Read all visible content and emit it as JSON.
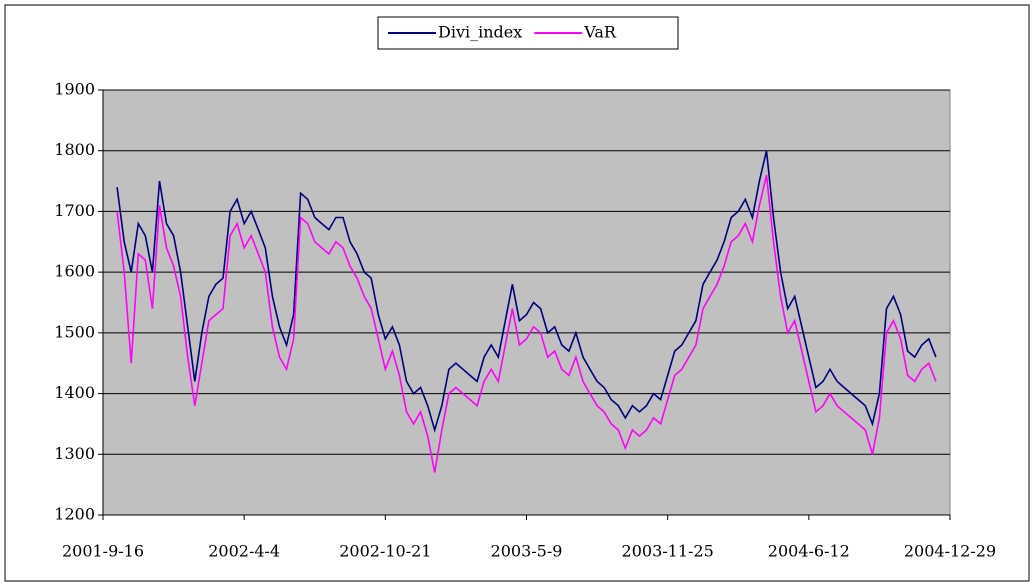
{
  "chart_data": {
    "type": "line",
    "categories": [
      "2001-9-16",
      null,
      null,
      null,
      null,
      null,
      null,
      null,
      null,
      null,
      null,
      null,
      null,
      null,
      null,
      null,
      null,
      null,
      null,
      null,
      "2002-4-4",
      null,
      null,
      null,
      null,
      null,
      null,
      null,
      null,
      null,
      null,
      null,
      null,
      null,
      null,
      null,
      null,
      null,
      null,
      null,
      "2002-10-21",
      null,
      null,
      null,
      null,
      null,
      null,
      null,
      null,
      null,
      null,
      null,
      null,
      null,
      null,
      null,
      null,
      null,
      null,
      null,
      "2003-5-9",
      null,
      null,
      null,
      null,
      null,
      null,
      null,
      null,
      null,
      null,
      null,
      null,
      null,
      null,
      null,
      null,
      null,
      null,
      null,
      "2003-11-25",
      null,
      null,
      null,
      null,
      null,
      null,
      null,
      null,
      null,
      null,
      null,
      null,
      null,
      null,
      null,
      null,
      null,
      null,
      null,
      "2004-6-12",
      null,
      null,
      null,
      null,
      null,
      null,
      null,
      null,
      null,
      null,
      null,
      null,
      null,
      null,
      null,
      null,
      null,
      null,
      null,
      "2004-12-29"
    ],
    "series": [
      {
        "name": "Divi_index",
        "color": "#000080",
        "values": [
          null,
          null,
          1740,
          1650,
          1600,
          1680,
          1660,
          1600,
          1750,
          1680,
          1660,
          1600,
          1510,
          1420,
          1500,
          1560,
          1580,
          1590,
          1700,
          1720,
          1680,
          1700,
          1670,
          1640,
          1560,
          1510,
          1480,
          1530,
          1730,
          1720,
          1690,
          1680,
          1670,
          1690,
          1690,
          1650,
          1630,
          1600,
          1590,
          1530,
          1490,
          1510,
          1480,
          1420,
          1400,
          1410,
          1380,
          1340,
          1380,
          1440,
          1450,
          1440,
          1430,
          1420,
          1460,
          1480,
          1460,
          1520,
          1580,
          1520,
          1530,
          1550,
          1540,
          1500,
          1510,
          1480,
          1470,
          1500,
          1460,
          1440,
          1420,
          1410,
          1390,
          1380,
          1360,
          1380,
          1370,
          1380,
          1400,
          1390,
          1430,
          1470,
          1480,
          1500,
          1520,
          1580,
          1600,
          1620,
          1650,
          1690,
          1700,
          1720,
          1690,
          1750,
          1800,
          1690,
          1600,
          1540,
          1560,
          1510,
          1460,
          1410,
          1420,
          1440,
          1420,
          1410,
          1400,
          1390,
          1380,
          1350,
          1400,
          1540,
          1560,
          1530,
          1470,
          1460,
          1480,
          1490,
          1460,
          null,
          null
        ]
      },
      {
        "name": "VaR",
        "color": "#ff00ff",
        "values": [
          null,
          null,
          1700,
          1600,
          1450,
          1630,
          1620,
          1540,
          1710,
          1640,
          1610,
          1560,
          1460,
          1380,
          1450,
          1520,
          1530,
          1540,
          1660,
          1680,
          1640,
          1660,
          1630,
          1600,
          1510,
          1460,
          1440,
          1490,
          1690,
          1680,
          1650,
          1640,
          1630,
          1650,
          1640,
          1610,
          1590,
          1560,
          1540,
          1490,
          1440,
          1470,
          1430,
          1370,
          1350,
          1370,
          1330,
          1270,
          1340,
          1400,
          1410,
          1400,
          1390,
          1380,
          1420,
          1440,
          1420,
          1480,
          1540,
          1480,
          1490,
          1510,
          1500,
          1460,
          1470,
          1440,
          1430,
          1460,
          1420,
          1400,
          1380,
          1370,
          1350,
          1340,
          1310,
          1340,
          1330,
          1340,
          1360,
          1350,
          1390,
          1430,
          1440,
          1460,
          1480,
          1540,
          1560,
          1580,
          1610,
          1650,
          1660,
          1680,
          1650,
          1710,
          1760,
          1650,
          1560,
          1500,
          1520,
          1470,
          1420,
          1370,
          1380,
          1400,
          1380,
          1370,
          1360,
          1350,
          1340,
          1300,
          1360,
          1500,
          1520,
          1490,
          1430,
          1420,
          1440,
          1450,
          1420,
          null,
          null
        ]
      }
    ],
    "ylim": [
      1200,
      1900
    ],
    "yticks": [
      1200,
      1300,
      1400,
      1500,
      1600,
      1700,
      1800,
      1900
    ],
    "grid": true,
    "legend": "top"
  }
}
